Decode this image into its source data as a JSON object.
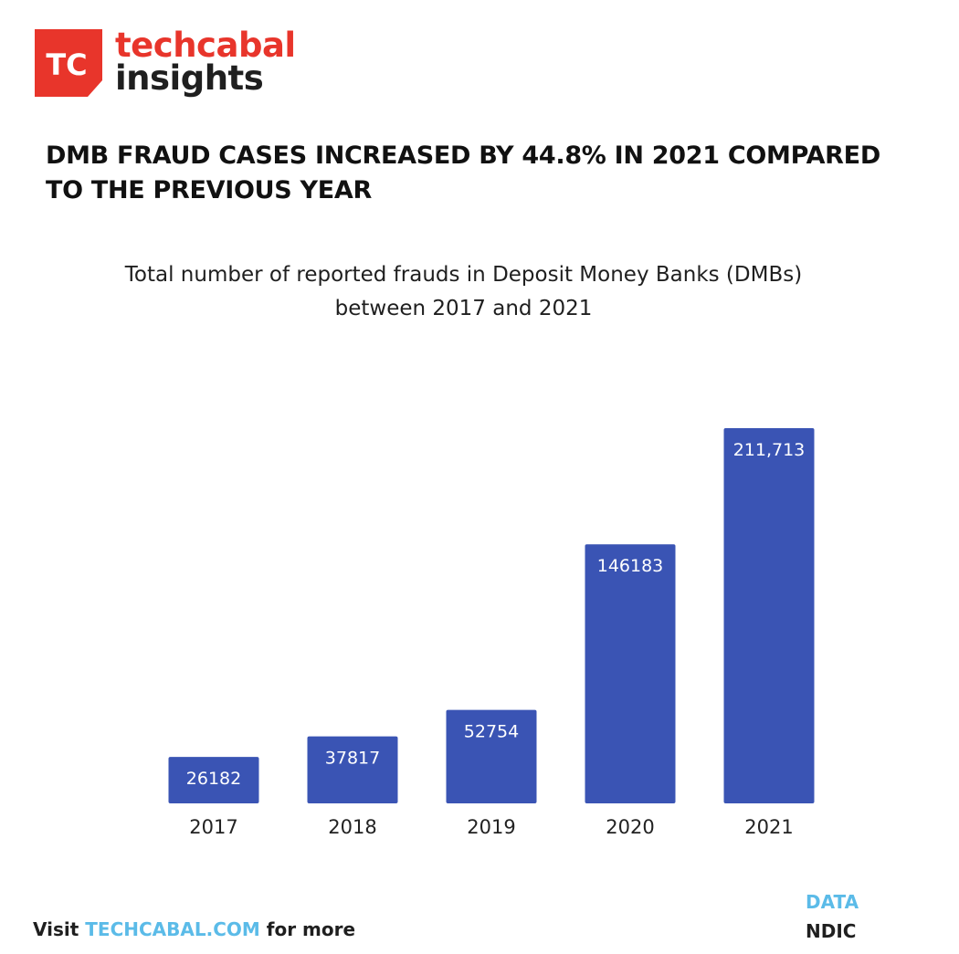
{
  "brand": {
    "logo_text": "TC",
    "name_top": "techcabal",
    "name_bottom": "insights",
    "logo_color": "#e8352b"
  },
  "headline": "DMB FRAUD CASES INCREASED BY 44.8% IN 2021 COMPARED TO THE PREVIOUS YEAR",
  "chart_data": {
    "type": "bar",
    "title": "Total number of reported frauds in Deposit Money Banks (DMBs) between 2017 and 2021",
    "title_lines": [
      "Total number of reported frauds in Deposit Money Banks (DMBs)",
      "between 2017 and 2021"
    ],
    "categories": [
      "2017",
      "2018",
      "2019",
      "2020",
      "2021"
    ],
    "values": [
      26182,
      37817,
      52754,
      146183,
      211713
    ],
    "data_labels": [
      "26182",
      "37817",
      "52754",
      "146183",
      "211,713"
    ],
    "xlabel": "",
    "ylabel": "",
    "ylim": [
      0,
      211713
    ],
    "grid": false,
    "bar_color": "#3a54b4"
  },
  "footer": {
    "prefix": "Visit ",
    "link": "TECHCABAL.COM",
    "suffix": " for more",
    "source_heading": "DATA",
    "source_name": "NDIC",
    "accent_color": "#5bbbe8"
  }
}
